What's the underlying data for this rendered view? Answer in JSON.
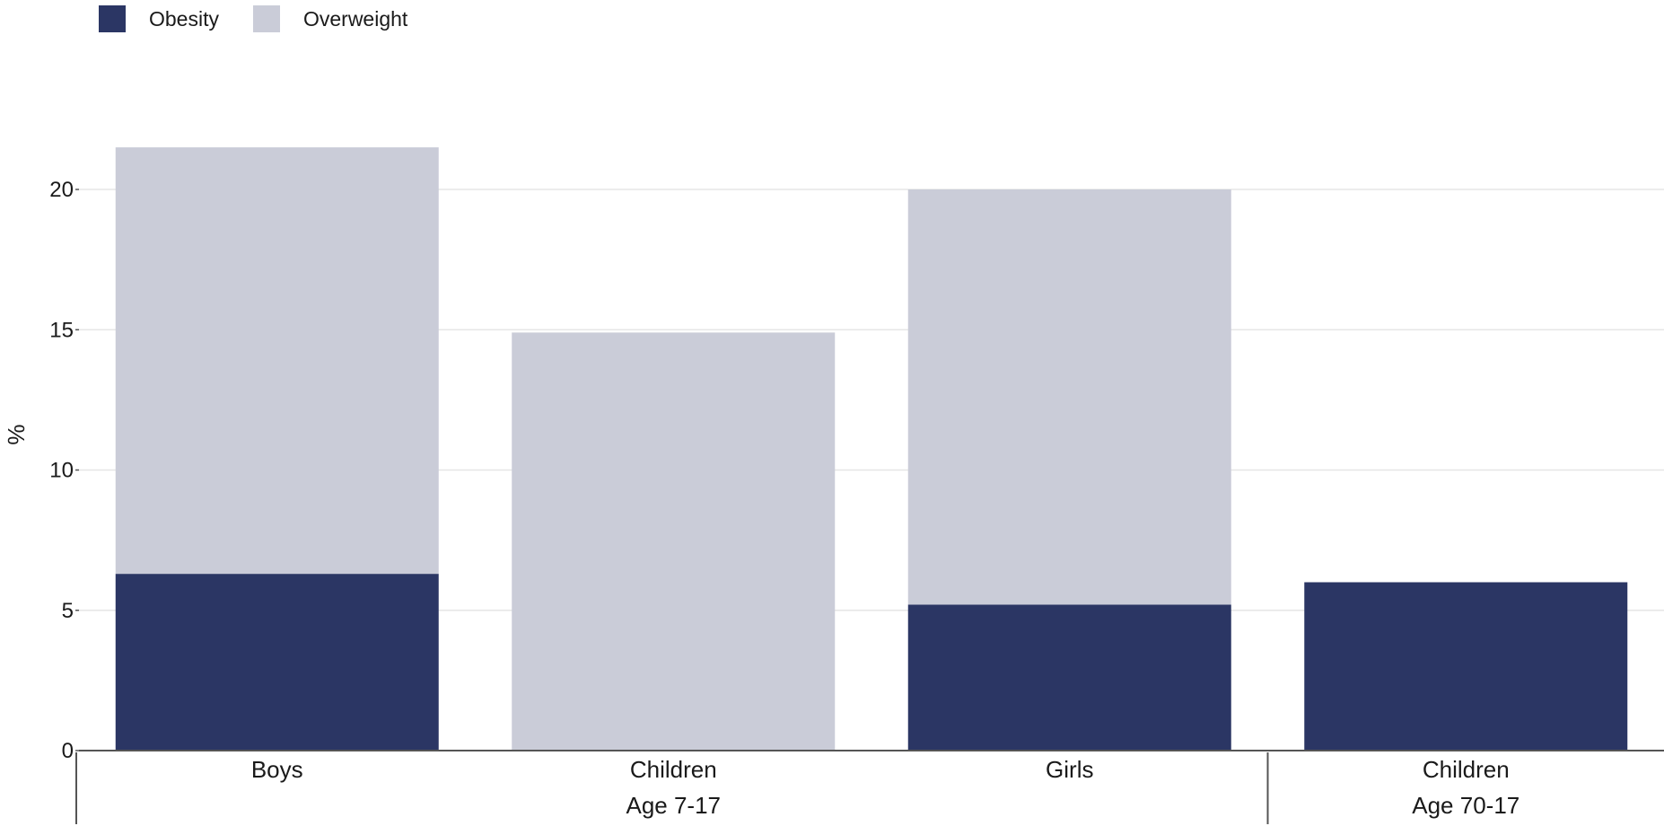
{
  "chart_data": {
    "type": "bar",
    "stacked": true,
    "ylabel": "%",
    "ylim": [
      0,
      25
    ],
    "yticks": [
      0,
      5,
      10,
      15,
      20
    ],
    "grid": true,
    "legend_position": "top-left",
    "categories": [
      "Boys",
      "Children",
      "Girls",
      "Children"
    ],
    "groups": [
      {
        "label": "Age 7-17",
        "categories": [
          "Boys",
          "Children",
          "Girls"
        ]
      },
      {
        "label": "Age 70-17",
        "categories": [
          "Children"
        ]
      }
    ],
    "series": [
      {
        "name": "Obesity",
        "color": "#2b3664",
        "values": [
          6.3,
          0,
          5.2,
          6.0
        ]
      },
      {
        "name": "Overweight",
        "color": "#caccd8",
        "values": [
          15.2,
          14.9,
          14.8,
          0
        ]
      }
    ]
  }
}
